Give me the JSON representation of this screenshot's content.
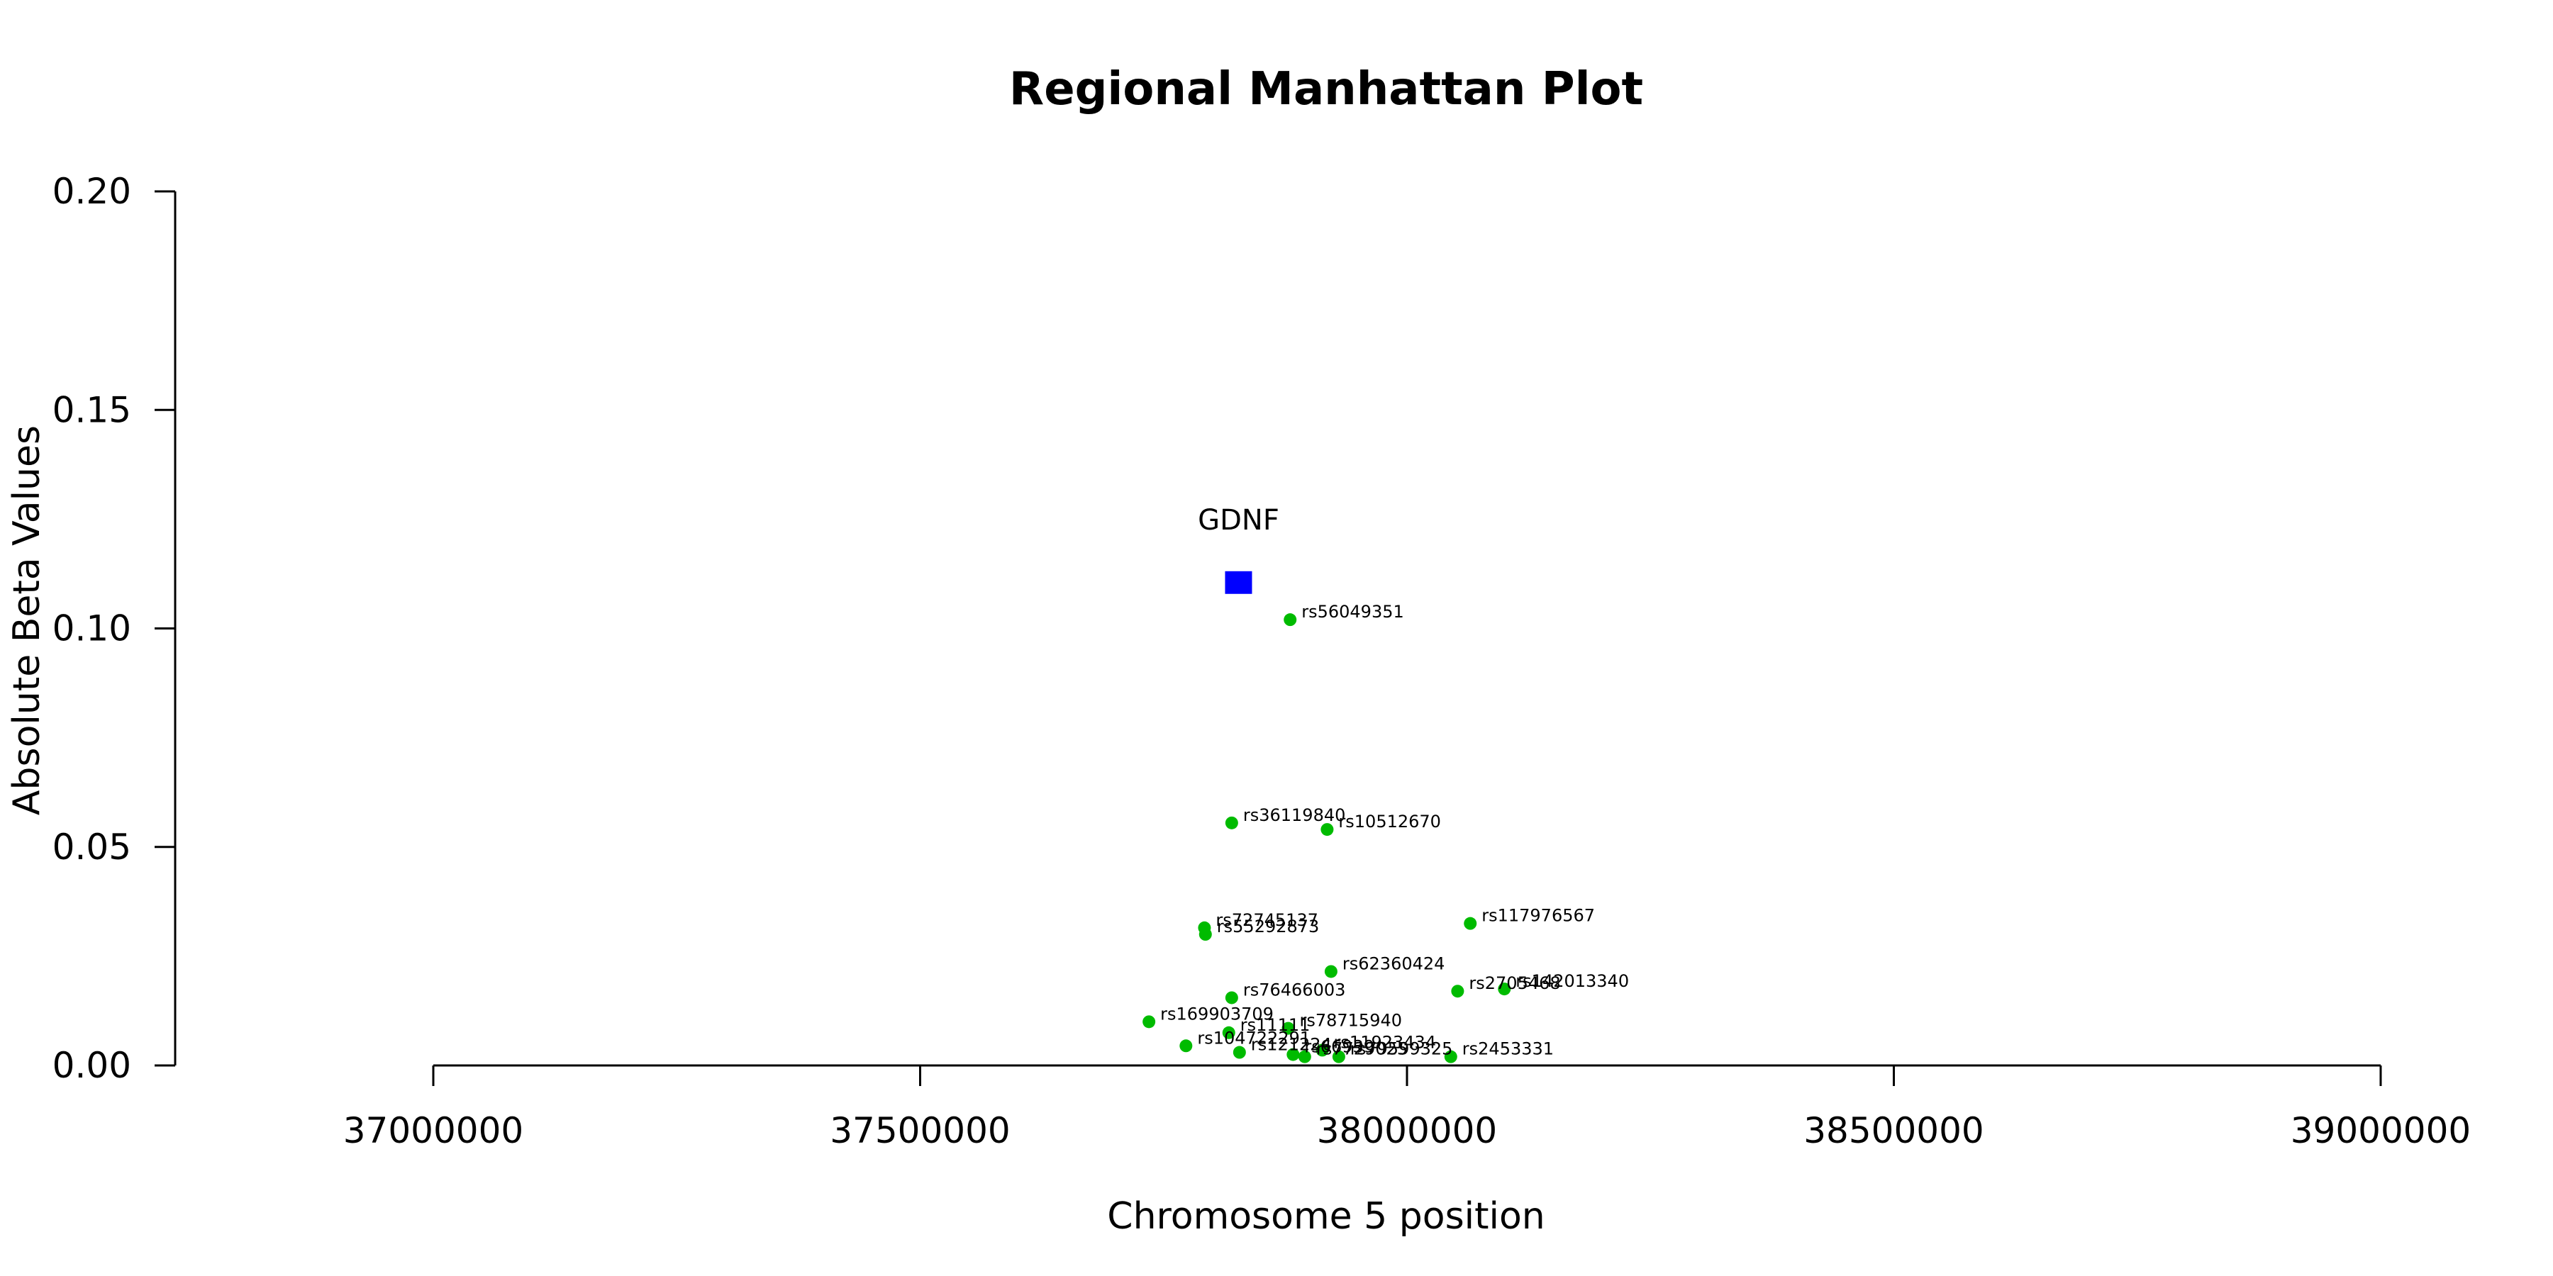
{
  "chart_data": {
    "type": "scatter",
    "title": "Regional Manhattan Plot",
    "xlabel": "Chromosome 5 position",
    "ylabel": "Absolute Beta Values",
    "xlim": [
      36830000,
      39160000
    ],
    "ylim": [
      0,
      0.2
    ],
    "x_ticks": [
      37000000,
      37500000,
      38000000,
      38500000,
      39000000
    ],
    "x_tick_labels": [
      "37000000",
      "37500000",
      "38000000",
      "38500000",
      "39000000"
    ],
    "y_ticks": [
      0,
      0.05,
      0.1,
      0.15,
      0.2
    ],
    "y_tick_labels": [
      "0.00",
      "0.05",
      "0.10",
      "0.15",
      "0.20"
    ],
    "grid": false,
    "gene": {
      "name": "GDNF",
      "x": 37827000,
      "y": 0.1105,
      "color": "#0000ff"
    },
    "snp_color": "#00bb00",
    "snps": [
      {
        "id": "rs56049351",
        "x": 37880000,
        "y": 0.102
      },
      {
        "id": "rs36119840",
        "x": 37820000,
        "y": 0.0555
      },
      {
        "id": "rs10512670",
        "x": 37918000,
        "y": 0.054
      },
      {
        "id": "rs72745137",
        "x": 37792000,
        "y": 0.0315
      },
      {
        "id": "rs55292873",
        "x": 37793000,
        "y": 0.03
      },
      {
        "id": "rs117976567",
        "x": 38065000,
        "y": 0.0325
      },
      {
        "id": "rs62360424",
        "x": 37922000,
        "y": 0.0215
      },
      {
        "id": "rs2705468",
        "x": 38052000,
        "y": 0.017
      },
      {
        "id": "rs142013340",
        "x": 38100000,
        "y": 0.0175
      },
      {
        "id": "rs76466003",
        "x": 37820000,
        "y": 0.0155
      },
      {
        "id": "rs169903709",
        "x": 37735000,
        "y": 0.01
      },
      {
        "id": "rs11111",
        "x": 37817000,
        "y": 0.0075
      },
      {
        "id": "rs78715940",
        "x": 37878000,
        "y": 0.0085
      },
      {
        "id": "rs104722291",
        "x": 37773000,
        "y": 0.0045
      },
      {
        "id": "rs121224",
        "x": 37828000,
        "y": 0.003
      },
      {
        "id": "rs66939",
        "x": 37883000,
        "y": 0.0025
      },
      {
        "id": "rs7729025",
        "x": 37895000,
        "y": 0.002
      },
      {
        "id": "rs11923434",
        "x": 37913000,
        "y": 0.0035
      },
      {
        "id": "rs79599325",
        "x": 37930000,
        "y": 0.002
      },
      {
        "id": "rs2453331",
        "x": 38045000,
        "y": 0.002
      }
    ]
  }
}
